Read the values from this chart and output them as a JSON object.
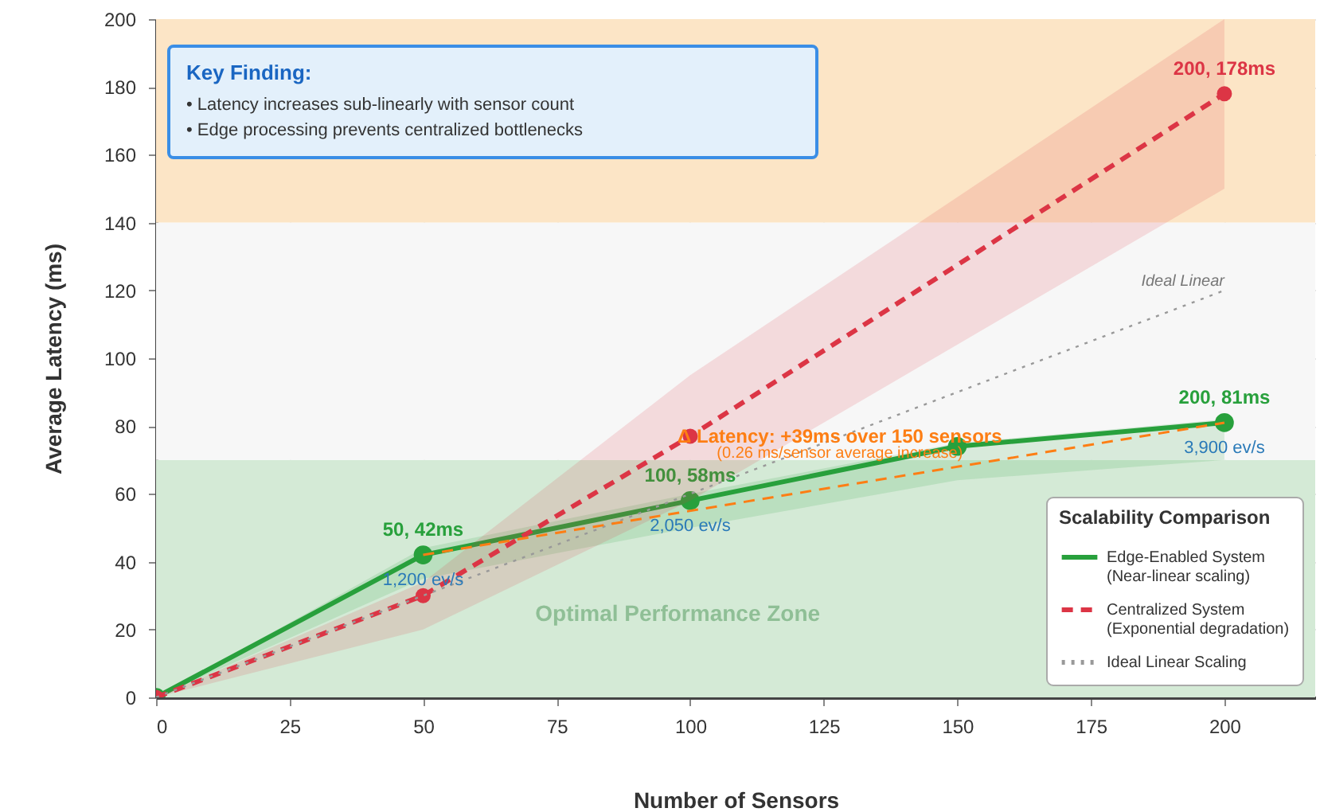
{
  "chart_data": {
    "type": "line",
    "xlabel": "Number of Sensors",
    "ylabel": "Average Latency (ms)",
    "legend_title": "Scalability Comparison",
    "xlim": [
      0,
      217
    ],
    "xticks": [
      0,
      25,
      50,
      75,
      100,
      125,
      150,
      175,
      200
    ],
    "ylim": [
      0,
      200
    ],
    "yticks": [
      0,
      20,
      40,
      60,
      80,
      100,
      120,
      140,
      160,
      180,
      200
    ],
    "grid": true,
    "legend": "bottom right",
    "marker": "circle",
    "series": [
      {
        "name": "Edge-Enabled System",
        "color": "#28a03c",
        "line_style": "solid",
        "x": [
          0,
          50,
          100,
          150,
          200
        ],
        "values": [
          0,
          42,
          58,
          74,
          81
        ],
        "lower": [
          0,
          35,
          50,
          64,
          70
        ],
        "upper": [
          0,
          44,
          60,
          75,
          82
        ],
        "value_labels": [
          null,
          "50, 42ms",
          "100, 58ms",
          null,
          "200, 81ms"
        ]
      },
      {
        "name": "Centralized System",
        "color": "#dc3545",
        "line_style": "dashed",
        "x": [
          0,
          50,
          100,
          200
        ],
        "values": [
          0,
          30,
          77,
          178
        ],
        "lower": [
          0,
          20,
          58,
          150
        ],
        "upper": [
          0,
          34,
          95,
          200
        ],
        "value_labels": [
          null,
          null,
          null,
          "200, 178ms"
        ]
      },
      {
        "name": "Ideal Linear Scaling",
        "color": "#999999",
        "line_style": "dotted",
        "marker": "none",
        "x": [
          0,
          200
        ],
        "values": [
          0,
          120
        ]
      },
      {
        "color": "#fd7e14",
        "line_style": "dashed",
        "marker": "none",
        "x": [
          50,
          200
        ],
        "values": [
          42,
          81
        ]
      }
    ],
    "bands": [
      {
        "axis": "y",
        "from": 0,
        "to": 70,
        "label": "Optimal Performance Zone",
        "color": "#d4ead6"
      },
      {
        "axis": "y",
        "from": 70,
        "to": 140,
        "color": "#f7f7f7"
      },
      {
        "axis": "y",
        "from": 140,
        "to": 200,
        "color": "#fce5c6"
      }
    ],
    "annotations": [
      "Key Finding:",
      "• Latency increases sub-linearly with sensor count",
      "• Edge processing prevents centralized bottlenecks",
      "(Near-linear scaling)",
      "(Exponential degradation)",
      {
        "text": "1,200 ev/s",
        "x": 50,
        "y": 42
      },
      {
        "text": "2,050 ev/s",
        "x": 100,
        "y": 58
      },
      {
        "text": "3,900 ev/s",
        "x": 200,
        "y": 81
      },
      {
        "text": "Δ Latency: +39ms over 150 sensors",
        "x": 128,
        "y": 77
      },
      {
        "text": "(0.26 ms/sensor average increase)",
        "x": 128,
        "y": 72
      },
      {
        "text": "Ideal Linear",
        "x": 200,
        "y": 120
      }
    ]
  }
}
